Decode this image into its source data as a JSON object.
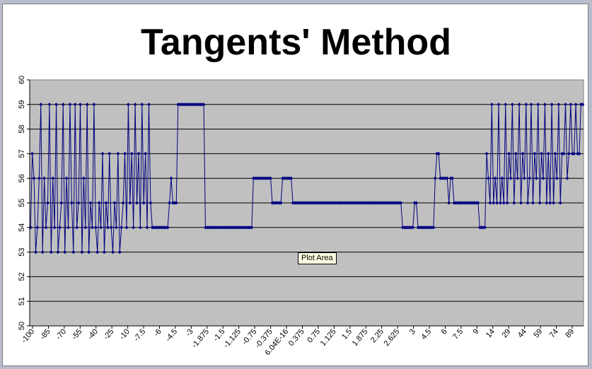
{
  "chart_data": {
    "type": "line",
    "title": "Tangents' Method",
    "xlabel": "",
    "ylabel": "",
    "ylim": [
      50,
      60
    ],
    "yticks": [
      "50",
      "51",
      "52",
      "53",
      "54",
      "55",
      "56",
      "57",
      "58",
      "59",
      "60"
    ],
    "xtick_labels": [
      "-100",
      "-85",
      "-70",
      "-55",
      "-40",
      "-25",
      "-10",
      "-7.5",
      "-6",
      "-4.5",
      "-3",
      "-1.875",
      "-1.5",
      "-1.125",
      "-0.75",
      "-0.375",
      "6.04E-16",
      "0.375",
      "0.75",
      "1.125",
      "1.5",
      "1.875",
      "2.25",
      "2.625",
      "3",
      "4.5",
      "6",
      "7.5",
      "9",
      "14",
      "29",
      "44",
      "59",
      "74",
      "89"
    ],
    "grid": "horizontal major",
    "legend": "none",
    "series": [
      {
        "color": "#000080",
        "marker": "diamond",
        "values": [
          54,
          57,
          56,
          53,
          54,
          56,
          59,
          53,
          56,
          54,
          55,
          59,
          53,
          56,
          54,
          59,
          53,
          54,
          55,
          59,
          53,
          56,
          54,
          59,
          55,
          53,
          59,
          54,
          55,
          59,
          53,
          56,
          54,
          59,
          53,
          55,
          54,
          59,
          54,
          53,
          55,
          54,
          57,
          53,
          55,
          54,
          57,
          54,
          53,
          55,
          54,
          57,
          53,
          54,
          55,
          57,
          54,
          59,
          55,
          57,
          54,
          59,
          55,
          57,
          54,
          59,
          55,
          57,
          54,
          59,
          55,
          54,
          54,
          54,
          54,
          54,
          54,
          54,
          54,
          54,
          54,
          55,
          56,
          55,
          55,
          55,
          59,
          59,
          59,
          59,
          59,
          59,
          59,
          59,
          59,
          59,
          59,
          59,
          59,
          59,
          59,
          59,
          54,
          54,
          54,
          54,
          54,
          54,
          54,
          54,
          54,
          54,
          54,
          54,
          54,
          54,
          54,
          54,
          54,
          54,
          54,
          54,
          54,
          54,
          54,
          54,
          54,
          54,
          54,
          54,
          56,
          56,
          56,
          56,
          56,
          56,
          56,
          56,
          56,
          56,
          56,
          55,
          55,
          55,
          55,
          55,
          55,
          56,
          56,
          56,
          56,
          56,
          56,
          55,
          55,
          55,
          55,
          55,
          55,
          55,
          55,
          55,
          55,
          55,
          55,
          55,
          55,
          55,
          55,
          55,
          55,
          55,
          55,
          55,
          55,
          55,
          55,
          55,
          55,
          55,
          55,
          55,
          55,
          55,
          55,
          55,
          55,
          55,
          55,
          55,
          55,
          55,
          55,
          55,
          55,
          55,
          55,
          55,
          55,
          55,
          55,
          55,
          55,
          55,
          55,
          55,
          55,
          55,
          55,
          55,
          55,
          55,
          55,
          55,
          55,
          55,
          55,
          54,
          54,
          54,
          54,
          54,
          54,
          54,
          55,
          55,
          54,
          54,
          54,
          54,
          54,
          54,
          54,
          54,
          54,
          54,
          56,
          57,
          57,
          56,
          56,
          56,
          56,
          56,
          55,
          56,
          56,
          55,
          55,
          55,
          55,
          55,
          55,
          55,
          55,
          55,
          55,
          55,
          55,
          55,
          55,
          55,
          54,
          54,
          54,
          54,
          57,
          56,
          55,
          59,
          55,
          56,
          55,
          59,
          55,
          56,
          55,
          59,
          55,
          57,
          56,
          59,
          55,
          57,
          56,
          59,
          55,
          57,
          56,
          59,
          55,
          56,
          59,
          55,
          57,
          56,
          59,
          55,
          57,
          56,
          59,
          55,
          57,
          55,
          59,
          55,
          57,
          56,
          59,
          55,
          57,
          57,
          59,
          56,
          57,
          59,
          57,
          57,
          59,
          57,
          57,
          59,
          59
        ]
      }
    ]
  },
  "ui": {
    "tooltip": "Plot Area"
  }
}
